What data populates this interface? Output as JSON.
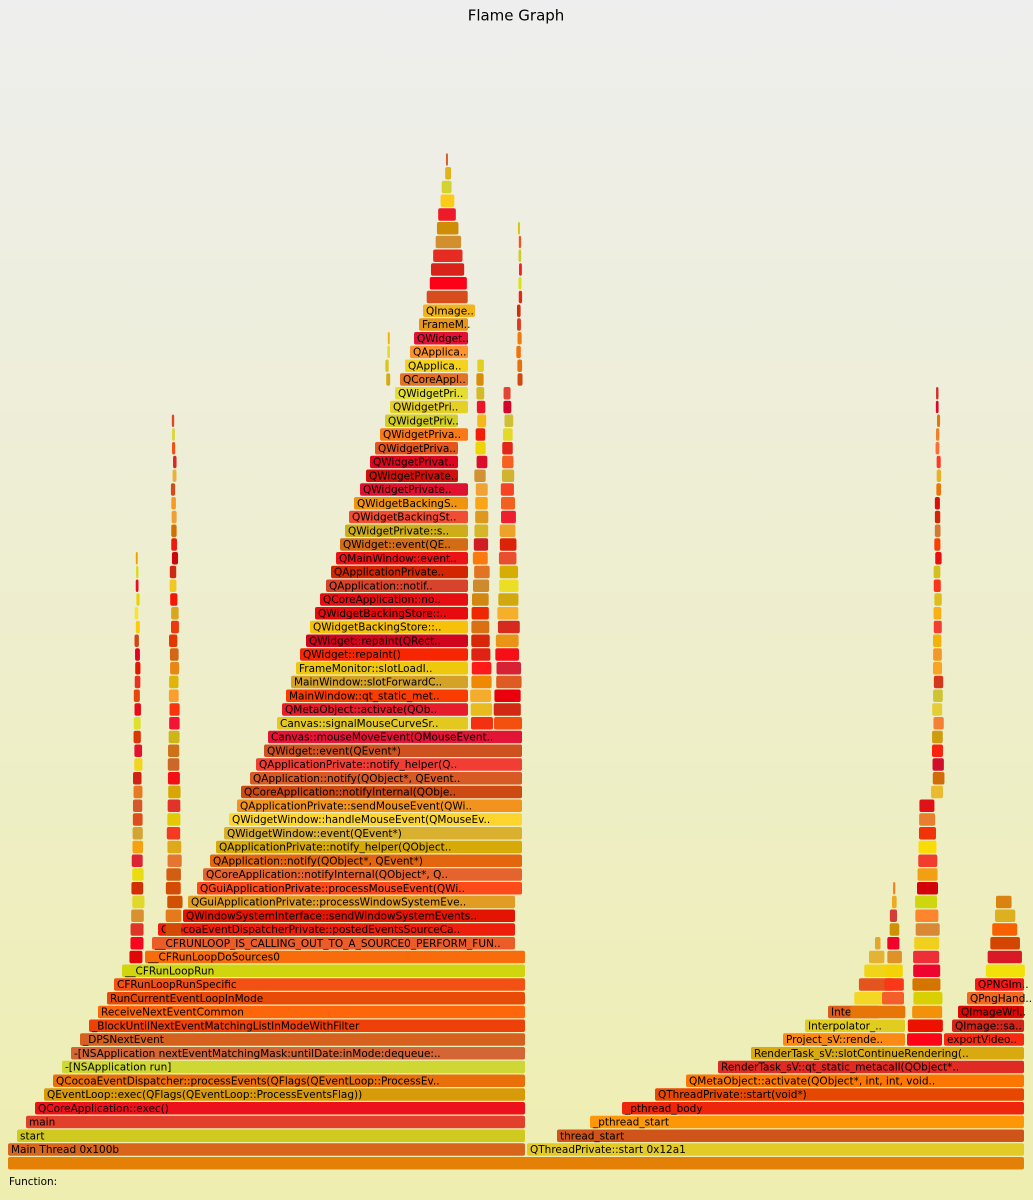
{
  "title": "Flame Graph",
  "frames": [
    "Main Thread 0x100b",
    "start",
    "main",
    "QCoreApplication::exec()",
    "QEventLoop::exec(QFlags(QEventLoop::ProcessEventsFlag))",
    "QCocoaEventDispatcher::processEvents(QFlags(QEventLoop::ProcessEv..",
    "-[NSApplication run]",
    "-[NSApplication nextEventMatchingMask:untilDate:inMode:dequeue:..",
    "_DPSNextEvent",
    "_BlockUntilNextEventMatchingListInModeWithFilter",
    "ReceiveNextEventCommon",
    "RunCurrentEventLoopInMode",
    "CFRunLoopRunSpecific",
    "__CFRunLoopRun",
    "__CFRunLoopDoSources0",
    "__CFRUNLOOP_IS_CALLING_OUT_TO_A_SOURCE0_PERFORM_FUN..",
    "QCocoaEventDispatcherPrivate::postedEventsSourceCa..",
    "QWindowSystemInterface::sendWindowSystemEvents..",
    "QGuiApplicationPrivate::processWindowSystemEve..",
    "QGuiApplicationPrivate::processMouseEvent(QWi..",
    "QCoreApplication::notifyInternal(QObject*, Q..",
    "QApplication::notify(QObject*, QEvent*)",
    "QApplicationPrivate::notify_helper(QObject..",
    "QWidgetWindow::event(QEvent*)",
    "QWidgetWindow::handleMouseEvent(QMouseEv..",
    "QApplicationPrivate::sendMouseEvent(QWi..",
    "QCoreApplication::notifyInternal(QObje..",
    "QApplication::notify(QObject*, QEvent..",
    "QApplicationPrivate::notify_helper(Q..",
    "QWidget::event(QEvent*)",
    "Canvas::mouseMoveEvent(QMouseEvent..",
    "Canvas::signalMouseCurveSr..",
    "QMetaObject::activate(QOb..",
    "MainWindow::qt_static_met..",
    "MainWindow::slotForwardC..",
    "FrameMonitor::slotLoadI..",
    "QWidget::repaint()",
    "QWidget::repaint(QRect..",
    "QWidgetBackingStore::..",
    "QWidgetBackingStore::..",
    "QCoreApplication::no..",
    "QApplication::notif..",
    "QApplicationPrivate..",
    "QMainWindow::event..",
    "QWidget::event(QE..",
    "QWidgetPrivate::s..",
    "QWidgetBackingSt..",
    "QWidgetBackingS..",
    "QWidgetPrivate..",
    "QWidgetPrivate..",
    "QWidgetPrivat..",
    "QWidgetPriva..",
    "QWidgetPriva..",
    "QWidgetPriv..",
    "QWidgetPri..",
    "QWidgetPri..",
    "QCoreAppl..",
    "QApplica..",
    "QApplica..",
    "QWidget..",
    "FrameM..",
    "QImage..",
    "QThreadPrivate::start 0x12a1",
    "thread_start",
    "_pthread_start",
    "_pthread_body",
    "QThreadPrivate::start(void*)",
    "QMetaObject::activate(QObject*, int, int, void..",
    "RenderTask_sV::qt_static_metacall(QObject*..",
    "RenderTask_sV::slotContinueRendering(..",
    "Project_sV::rende..",
    "exportVideo..",
    "Interpolator_..",
    "QImage::sa..",
    "Interpol..",
    "QImageWri..",
    "QPngHand..",
    "QPNGIm.."
  ],
  "footer": "Function:"
}
